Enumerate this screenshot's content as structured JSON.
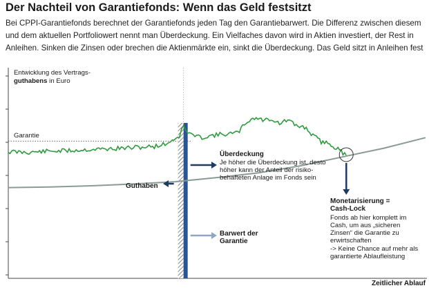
{
  "header": {
    "title": "Der Nachteil von Garantiefonds: Wenn das Geld festsitzt",
    "intro": "Bei CPPI-Garantiefonds berechnet der Garantiefonds jeden Tag den Garantiebarwert. Die Differenz zwischen diesem und dem aktuellen Portfoliowert nennt man Überdeckung. Ein Vielfaches davon wird in Aktien investiert, der Rest in Anleihen. Sinken die Zinsen oder brechen die Aktienmärkte ein, sinkt die Überdeckung. Das Geld sitzt in Anleihen fest"
  },
  "colors": {
    "fund_line": "#2e9a3e",
    "barwert_line": "#8a9b93",
    "arrow_dark": "#1d3a63",
    "arrow_light": "#8fa6c1",
    "bar_blue": "#2a5590",
    "axis": "#444444"
  },
  "chart_data": {
    "type": "line",
    "title": "",
    "ylabel_line1": "Entwicklung des Vertrags-",
    "ylabel_line2_bold": "guthabens",
    "ylabel_line2_rest": " in Euro",
    "xlabel": "Zeitlicher Ablauf",
    "guarantee_label": "Garantie",
    "series": [
      {
        "key": "fund",
        "points": [
          [
            0,
            0.18
          ],
          [
            5,
            0.17
          ],
          [
            10,
            0.19
          ],
          [
            15,
            0.2
          ],
          [
            20,
            0.22
          ],
          [
            25,
            0.23
          ],
          [
            30,
            0.25
          ],
          [
            35,
            0.27
          ],
          [
            38,
            0.32
          ],
          [
            41,
            0.45
          ],
          [
            42,
            0.62
          ],
          [
            43,
            0.5
          ],
          [
            46,
            0.42
          ],
          [
            49,
            0.46
          ],
          [
            52,
            0.48
          ],
          [
            55,
            0.5
          ],
          [
            57,
            0.68
          ],
          [
            59,
            0.76
          ],
          [
            61,
            0.72
          ],
          [
            63,
            0.74
          ],
          [
            65,
            0.66
          ],
          [
            67,
            0.72
          ],
          [
            69,
            0.62
          ],
          [
            71,
            0.6
          ],
          [
            73,
            0.46
          ],
          [
            75,
            0.35
          ],
          [
            77,
            0.32
          ],
          [
            79,
            0.22
          ],
          [
            81,
            0.12
          ]
        ]
      },
      {
        "key": "barwert",
        "points": [
          [
            0,
            -0.43
          ],
          [
            10,
            -0.42
          ],
          [
            20,
            -0.4
          ],
          [
            30,
            -0.37
          ],
          [
            40,
            -0.33
          ],
          [
            50,
            -0.26
          ],
          [
            60,
            -0.18
          ],
          [
            70,
            -0.06
          ],
          [
            80,
            0.09
          ],
          [
            90,
            0.24
          ],
          [
            100,
            0.42
          ]
        ]
      }
    ],
    "xlim": [
      0,
      100
    ],
    "ylim": [
      -1.0,
      1.0
    ],
    "guarantee_level": 0.36,
    "lock_point": [
      81,
      0.13
    ],
    "reference_x": 42
  },
  "annotations": {
    "ueberdeckung": {
      "title": "Überdeckung",
      "lines": [
        "Je höher die Überdeckung ist, desto",
        "höher kann der Anteil der risiko-",
        "behafteten Anlage im Fonds sein"
      ]
    },
    "guthaben": {
      "label": "Guthaben"
    },
    "barwert": {
      "lines": [
        "Barwert der",
        "Garantie"
      ]
    },
    "monetarisierung": {
      "title_lines": [
        "Monetarisierung =",
        "Cash-Lock"
      ],
      "lines": [
        "Fonds ab hier komplett im",
        "Cash, um aus „sicheren",
        "Zinsen“ die Garantie zu",
        "erwirtschaften"
      ],
      "note_lines": [
        "-> Keine Chance auf mehr als",
        "garantierte Ablaufleistung"
      ]
    }
  }
}
